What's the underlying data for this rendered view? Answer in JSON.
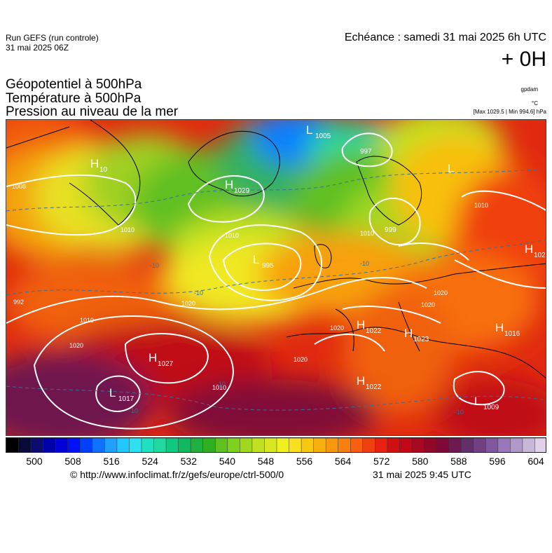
{
  "header": {
    "run_title": "Run GEFS (run controle)",
    "run_date": "31 mai 2025 06Z",
    "echeance": "Echéance : samedi 31 mai 2025 6h UTC",
    "leadtime": "+ 0H"
  },
  "parameters": [
    "Géopotentiel à 500hPa",
    "Température à 500hPa",
    "Pression au niveau de la mer"
  ],
  "units": {
    "geopotential": "gpdam",
    "temperature": "°C",
    "pressure_range": "[Max 1029.5 | Min 994.6] hPa"
  },
  "map": {
    "centers": [
      {
        "type": "L",
        "value": "1005"
      },
      {
        "type": "",
        "value": "997"
      },
      {
        "type": "H",
        "value": "10"
      },
      {
        "type": "H",
        "value": "1029"
      },
      {
        "type": "L",
        "value": "995"
      },
      {
        "type": "",
        "value": "999"
      },
      {
        "type": "L",
        "value": ""
      },
      {
        "type": "H",
        "value": "102"
      },
      {
        "type": "H",
        "value": "1022"
      },
      {
        "type": "H",
        "value": "1023"
      },
      {
        "type": "H",
        "value": "1016"
      },
      {
        "type": "H",
        "value": "1027"
      },
      {
        "type": "H",
        "value": "1022"
      },
      {
        "type": "L",
        "value": "1017"
      },
      {
        "type": "L",
        "value": "1009"
      }
    ],
    "isobar_labels": [
      "1008",
      "1010",
      "1010",
      "992",
      "1010",
      "1020",
      "1020",
      "1010",
      "1020",
      "1020",
      "1020",
      "1020",
      "1010",
      "1010"
    ],
    "temperature_labels": [
      "-10",
      "-10",
      "-10",
      "-10",
      "-10",
      "-10"
    ]
  },
  "colorbar": {
    "ticks": [
      "500",
      "508",
      "516",
      "524",
      "532",
      "540",
      "548",
      "556",
      "564",
      "572",
      "580",
      "588",
      "596",
      "604"
    ],
    "colors": [
      "#000000",
      "#0a0a3a",
      "#0c0c70",
      "#0000a8",
      "#0000d8",
      "#0010f8",
      "#0040ff",
      "#1070ff",
      "#20a0ff",
      "#20c8ff",
      "#30e0f0",
      "#20e0c0",
      "#20d8a0",
      "#10c880",
      "#10b860",
      "#20b040",
      "#30b020",
      "#60c020",
      "#80d020",
      "#a0d820",
      "#c0e020",
      "#d8e820",
      "#f0f020",
      "#f8e020",
      "#f8c810",
      "#f8b010",
      "#f89810",
      "#f88010",
      "#f86010",
      "#f04010",
      "#e82010",
      "#d01010",
      "#c00818",
      "#a80820",
      "#900828",
      "#800838",
      "#701850",
      "#603068",
      "#704080",
      "#8058a0",
      "#9878b8",
      "#b098c8",
      "#c8b8d8",
      "#e0d0e8"
    ]
  },
  "footer": {
    "url": "© http://www.infoclimat.fr/z/gefs/europe/ctrl-500/0",
    "date": "31 mai 2025  9:45 UTC"
  }
}
